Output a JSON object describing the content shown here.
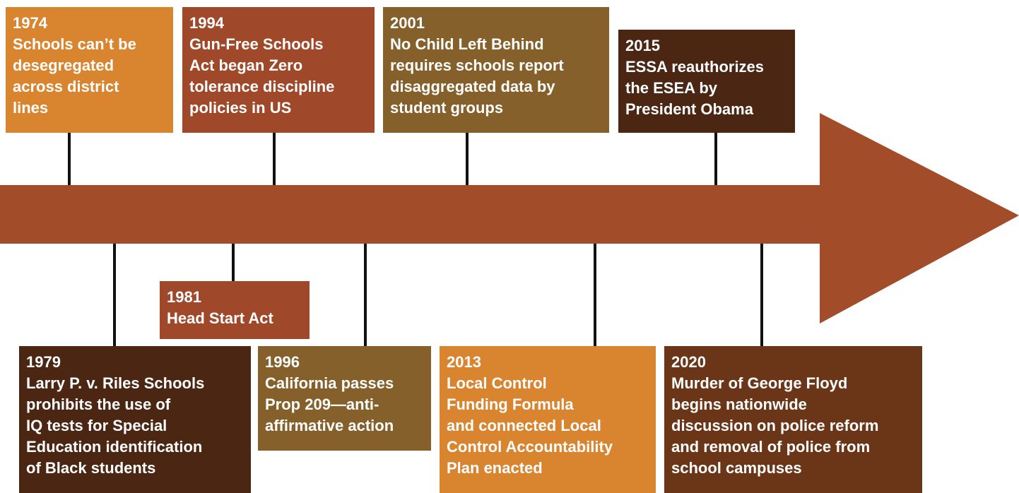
{
  "events": [
    {
      "year": "1974",
      "lines": [
        "Schools can’t be",
        "desegregated",
        "across district",
        "lines"
      ]
    },
    {
      "year": "1994",
      "lines": [
        "Gun-Free Schools",
        "Act began Zero",
        "tolerance discipline",
        "policies in US"
      ]
    },
    {
      "year": "2001",
      "lines": [
        "No Child Left Behind",
        "requires schools report",
        "disaggregated data by",
        "student groups"
      ]
    },
    {
      "year": "2015",
      "lines": [
        "ESSA reauthorizes",
        "the ESEA by",
        "President Obama"
      ]
    },
    {
      "year": "1979",
      "lines": [
        "Larry P. v. Riles Schools",
        "prohibits the use of",
        "IQ tests for Special",
        "Education identification",
        "of Black students"
      ]
    },
    {
      "year": "1981",
      "lines": [
        "Head Start Act"
      ]
    },
    {
      "year": "1996",
      "lines": [
        "California passes",
        "Prop 209—anti-",
        "affirmative action"
      ]
    },
    {
      "year": "2013",
      "lines": [
        "Local Control",
        "Funding Formula",
        "and connected Local",
        "Control Accountability",
        "Plan enacted"
      ]
    },
    {
      "year": "2020",
      "lines": [
        "Murder of George Floyd",
        "begins nationwide",
        "discussion on police reform",
        "and removal of police from",
        "school campuses"
      ]
    }
  ]
}
